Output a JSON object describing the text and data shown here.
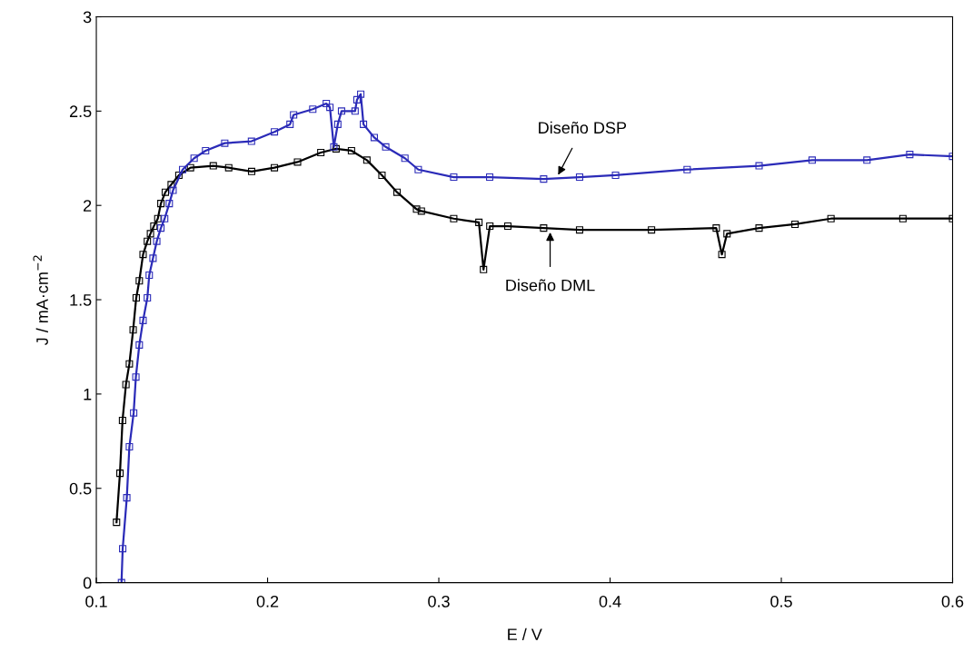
{
  "chart_data": {
    "type": "line",
    "xlabel": "E / V",
    "ylabel": "J / mA·cm$^{−2}$",
    "xlim": [
      0.1,
      0.6
    ],
    "ylim": [
      0,
      3
    ],
    "xticks": [
      0.1,
      0.2,
      0.3,
      0.4,
      0.5,
      0.6
    ],
    "yticks": [
      0,
      0.5,
      1,
      1.5,
      2,
      2.5,
      3
    ],
    "grid": false,
    "legend": false,
    "marker": "square",
    "line_style": "solid",
    "series": [
      {
        "color": "#000000",
        "x": [
          0.1118,
          0.1138,
          0.1153,
          0.1173,
          0.1193,
          0.1215,
          0.1233,
          0.1251,
          0.1273,
          0.1298,
          0.1316,
          0.1336,
          0.1359,
          0.1377,
          0.1403,
          0.1437,
          0.1482,
          0.155,
          0.1683,
          0.1773,
          0.1907,
          0.204,
          0.2175,
          0.2311,
          0.24,
          0.249,
          0.258,
          0.2668,
          0.2756,
          0.287,
          0.2898,
          0.3087,
          0.3234,
          0.3261,
          0.3298,
          0.3403,
          0.3612,
          0.3822,
          0.4242,
          0.462,
          0.4653,
          0.4683,
          0.487,
          0.508,
          0.529,
          0.571,
          0.6
        ],
        "values": [
          0.32,
          0.58,
          0.86,
          1.05,
          1.16,
          1.34,
          1.51,
          1.6,
          1.74,
          1.81,
          1.85,
          1.89,
          1.93,
          2.01,
          2.07,
          2.11,
          2.16,
          2.2,
          2.21,
          2.2,
          2.18,
          2.2,
          2.23,
          2.28,
          2.3,
          2.29,
          2.24,
          2.16,
          2.07,
          1.98,
          1.97,
          1.93,
          1.91,
          1.66,
          1.89,
          1.89,
          1.88,
          1.87,
          1.87,
          1.88,
          1.74,
          1.85,
          1.88,
          1.9,
          1.93,
          1.93,
          1.93
        ]
      },
      {
        "color": "#2b2bb8",
        "x": [
          0.1147,
          0.1154,
          0.1178,
          0.1193,
          0.1218,
          0.1231,
          0.1251,
          0.1273,
          0.1298,
          0.1309,
          0.1331,
          0.1353,
          0.1377,
          0.1399,
          0.1426,
          0.1448,
          0.1504,
          0.1571,
          0.1638,
          0.175,
          0.1906,
          0.204,
          0.2131,
          0.2152,
          0.2264,
          0.2343,
          0.2364,
          0.2387,
          0.241,
          0.2432,
          0.2511,
          0.2522,
          0.2544,
          0.256,
          0.2623,
          0.269,
          0.2802,
          0.288,
          0.3087,
          0.3297,
          0.3612,
          0.3822,
          0.4032,
          0.445,
          0.487,
          0.518,
          0.55,
          0.575,
          0.6
        ],
        "values": [
          0.0,
          0.18,
          0.45,
          0.72,
          0.9,
          1.09,
          1.26,
          1.39,
          1.51,
          1.63,
          1.72,
          1.81,
          1.88,
          1.93,
          2.01,
          2.08,
          2.19,
          2.25,
          2.29,
          2.33,
          2.34,
          2.39,
          2.43,
          2.48,
          2.51,
          2.54,
          2.52,
          2.31,
          2.43,
          2.5,
          2.5,
          2.56,
          2.59,
          2.43,
          2.36,
          2.31,
          2.25,
          2.19,
          2.15,
          2.15,
          2.14,
          2.15,
          2.16,
          2.19,
          2.21,
          2.24,
          2.24,
          2.27,
          2.26
        ]
      }
    ],
    "annotations": [
      {
        "text": "Diseño DSP",
        "x": 0.369,
        "y": 2.15
      },
      {
        "text": "Diseño DML",
        "x": 0.365,
        "y": 1.87
      }
    ]
  }
}
